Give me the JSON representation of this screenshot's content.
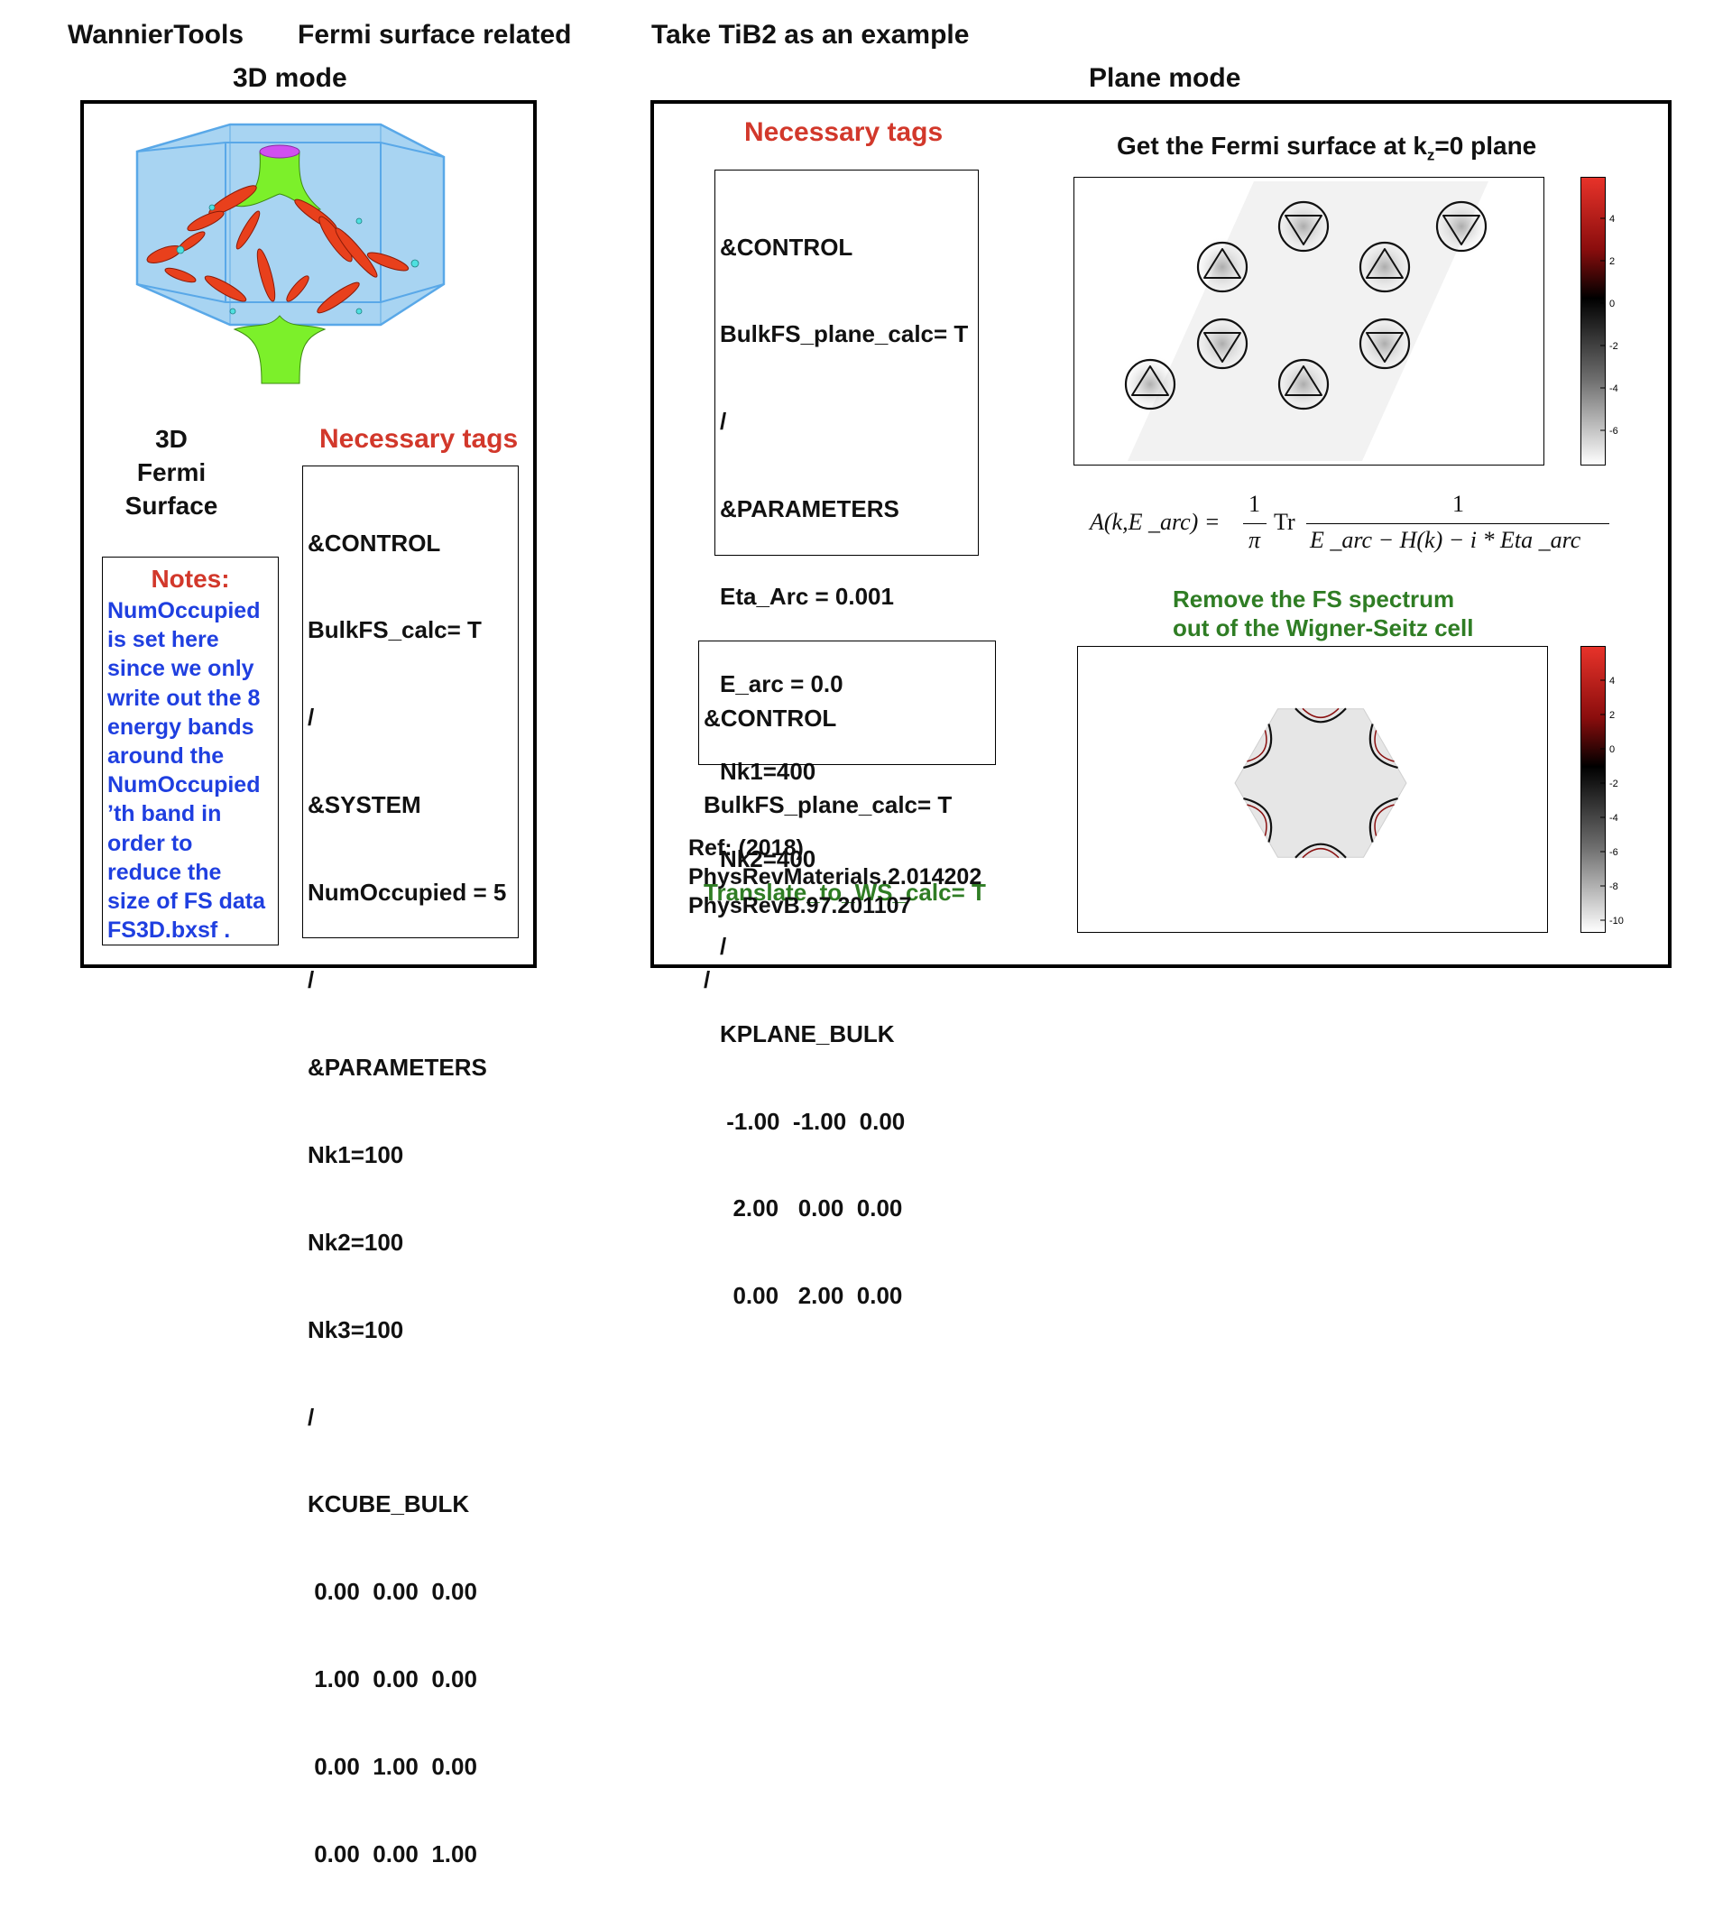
{
  "header": {
    "app": "WannierTools",
    "topic": "Fermi surface related",
    "example": "Take TiB2 as an example",
    "left_mode": "3D mode",
    "right_mode": "Plane mode"
  },
  "left": {
    "fs_caption": [
      "3D",
      "Fermi",
      "Surface"
    ],
    "tags_title": "Necessary tags",
    "tags": [
      "&CONTROL",
      "BulkFS_calc= T",
      "/",
      "&SYSTEM",
      "NumOccupied = 5",
      "/",
      "&PARAMETERS",
      "Nk1=100",
      "Nk2=100",
      "Nk3=100",
      "/",
      "KCUBE_BULK",
      " 0.00  0.00  0.00",
      " 1.00  0.00  0.00",
      " 0.00  1.00  0.00",
      " 0.00  0.00  1.00"
    ],
    "notes_title": "Notes:",
    "notes": [
      "NumOccupied",
      "is set here",
      "since we only",
      "write out the 8",
      "energy bands",
      "around the",
      "NumOccupied",
      "’th band in",
      "order to",
      "reduce the",
      "size of FS data",
      "FS3D.bxsf ."
    ]
  },
  "right": {
    "tags_title": "Necessary tags",
    "tags": [
      "&CONTROL",
      "BulkFS_plane_calc= T",
      "/",
      "&PARAMETERS",
      "Eta_Arc = 0.001",
      "E_arc = 0.0",
      "Nk1=400",
      "Nk2=400",
      "/",
      "KPLANE_BULK",
      " -1.00  -1.00  0.00",
      "  2.00   0.00  0.00",
      "  0.00   2.00  0.00"
    ],
    "plot1_title_pre": "Get the Fermi surface at k",
    "plot1_title_sub": "z",
    "plot1_title_post": "=0 plane",
    "colorbar1_ticks": [
      "4",
      "2",
      "0",
      "-2",
      "-4",
      "-6"
    ],
    "formula": {
      "lhs": "A(k,E _arc) =",
      "frac1_num": "1",
      "frac1_den": "π",
      "tr": "Tr",
      "frac2_num": "1",
      "frac2_den": "E _arc − H(k) − i * Eta _arc"
    },
    "ws_caption": [
      "Remove the FS spectrum",
      "out of the Wigner-Seitz cell"
    ],
    "tags2": [
      "&CONTROL",
      "BulkFS_plane_calc= T"
    ],
    "tags2_green": "Translate_to_WS_calc= T",
    "tags2_end": "/",
    "colorbar2_ticks": [
      "4",
      "2",
      "0",
      "-2",
      "-4",
      "-6",
      "-8",
      "-10"
    ],
    "ref_title": "Ref: (2018)",
    "refs": [
      "PhysRevMaterials.2.014202",
      "PhysRevB.97.201107"
    ]
  }
}
